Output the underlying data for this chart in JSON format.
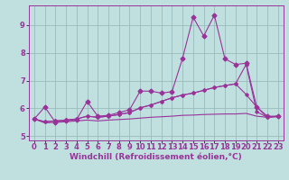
{
  "xlabel": "Windchill (Refroidissement éolien,°C)",
  "bg_color": "#c0e0e0",
  "line_color": "#993399",
  "xlim": [
    -0.5,
    23.5
  ],
  "ylim": [
    4.85,
    9.7
  ],
  "xticks": [
    0,
    1,
    2,
    3,
    4,
    5,
    6,
    7,
    8,
    9,
    10,
    11,
    12,
    13,
    14,
    15,
    16,
    17,
    18,
    19,
    20,
    21,
    22,
    23
  ],
  "yticks": [
    5,
    6,
    7,
    8,
    9
  ],
  "line1_x": [
    0,
    1,
    2,
    3,
    4,
    5,
    6,
    7,
    8,
    9,
    10,
    11,
    12,
    13,
    14,
    15,
    16,
    17,
    18,
    19,
    20,
    21,
    22,
    23
  ],
  "line1_y": [
    5.62,
    6.05,
    5.5,
    5.55,
    5.6,
    6.25,
    5.72,
    5.75,
    5.85,
    5.95,
    6.62,
    6.62,
    6.55,
    6.6,
    7.8,
    9.28,
    8.6,
    9.35,
    7.78,
    7.58,
    7.62,
    6.05,
    5.72,
    5.72
  ],
  "line2_x": [
    0,
    1,
    2,
    3,
    4,
    5,
    6,
    7,
    8,
    9,
    10,
    11,
    12,
    13,
    14,
    15,
    16,
    17,
    18,
    19,
    20,
    21,
    22,
    23
  ],
  "line2_y": [
    5.62,
    5.52,
    5.55,
    5.58,
    5.62,
    5.72,
    5.68,
    5.72,
    5.78,
    5.85,
    6.02,
    6.12,
    6.25,
    6.38,
    6.48,
    6.55,
    6.65,
    6.75,
    6.82,
    6.88,
    7.58,
    5.88,
    5.68,
    5.72
  ],
  "line3_x": [
    0,
    1,
    2,
    3,
    4,
    5,
    6,
    7,
    8,
    9,
    10,
    11,
    12,
    13,
    14,
    15,
    16,
    17,
    18,
    19,
    20,
    21,
    22,
    23
  ],
  "line3_y": [
    5.62,
    5.48,
    5.5,
    5.52,
    5.55,
    5.58,
    5.55,
    5.58,
    5.6,
    5.62,
    5.65,
    5.68,
    5.7,
    5.72,
    5.75,
    5.76,
    5.78,
    5.79,
    5.8,
    5.8,
    5.82,
    5.72,
    5.68,
    5.7
  ],
  "line4_x": [
    0,
    1,
    2,
    3,
    4,
    5,
    6,
    7,
    8,
    9,
    10,
    11,
    12,
    13,
    14,
    15,
    16,
    17,
    18,
    19,
    20,
    21,
    22,
    23
  ],
  "line4_y": [
    5.62,
    5.52,
    5.55,
    5.58,
    5.62,
    5.72,
    5.68,
    5.72,
    5.78,
    5.85,
    6.02,
    6.12,
    6.25,
    6.38,
    6.48,
    6.55,
    6.65,
    6.75,
    6.82,
    6.88,
    6.5,
    6.05,
    5.68,
    5.72
  ],
  "grid_color": "#99bbbb",
  "tick_fontsize": 6,
  "label_fontsize": 6.5
}
